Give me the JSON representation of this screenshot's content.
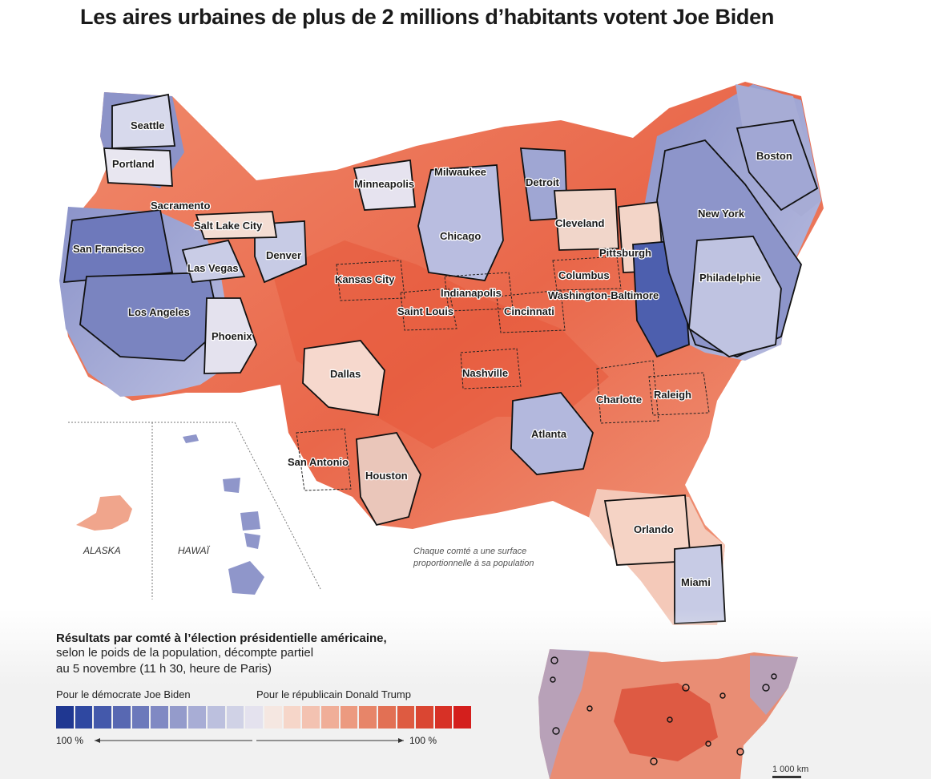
{
  "title": "Les aires urbaines de plus de 2 millions d’habitants votent Joe Biden",
  "map": {
    "cities": [
      "Seattle",
      "Portland",
      "Sacramento",
      "Salt Lake City",
      "San Francisco",
      "Las Vegas",
      "Denver",
      "Los Angeles",
      "Phoenix",
      "Minneapolis",
      "Milwaukee",
      "Detroit",
      "Chicago",
      "Kansas City",
      "Indianapolis",
      "Saint Louis",
      "Cincinnati",
      "Columbus",
      "Cleveland",
      "Pittsburgh",
      "Washington-Baltimore",
      "Boston",
      "New York",
      "Philadelphie",
      "Dallas",
      "Nashville",
      "Charlotte",
      "Raleigh",
      "Atlanta",
      "San Antonio",
      "Houston",
      "Orlando",
      "Miami"
    ],
    "insets": {
      "alaska": "ALASKA",
      "hawaii": "HAWAÏ"
    },
    "note": [
      "Chaque comté a une surface",
      "proportionnelle à sa population"
    ],
    "colors": {
      "biden_strong": "#253a93",
      "trump_strong": "#d92a23",
      "neutral": "#f4ece8"
    }
  },
  "legend": {
    "title": "Résultats par comté à l’élection présidentielle américaine,",
    "subtitle_lines": [
      "selon le poids de la population, décompte partiel",
      "au 5 novembre (11 h 30, heure de Paris)"
    ],
    "biden_label": "Pour le démocrate Joe Biden",
    "trump_label": "Pour le républicain Donald Trump",
    "left_pct": "100 %",
    "right_pct": "100 %",
    "scale_colors": [
      "#1f3791",
      "#2f48a1",
      "#4459ab",
      "#5868b2",
      "#6c79bb",
      "#8089c3",
      "#949bcb",
      "#a8add5",
      "#bcc0de",
      "#d0d2e6",
      "#e4e2ee",
      "#f5e7e1",
      "#f6d6c9",
      "#f3c2b1",
      "#f0ae98",
      "#ec9a80",
      "#e78569",
      "#e27054",
      "#de5b41",
      "#da4632",
      "#d73126",
      "#d41f1d"
    ]
  },
  "minimap": {
    "scale_label": "1 000 km"
  }
}
